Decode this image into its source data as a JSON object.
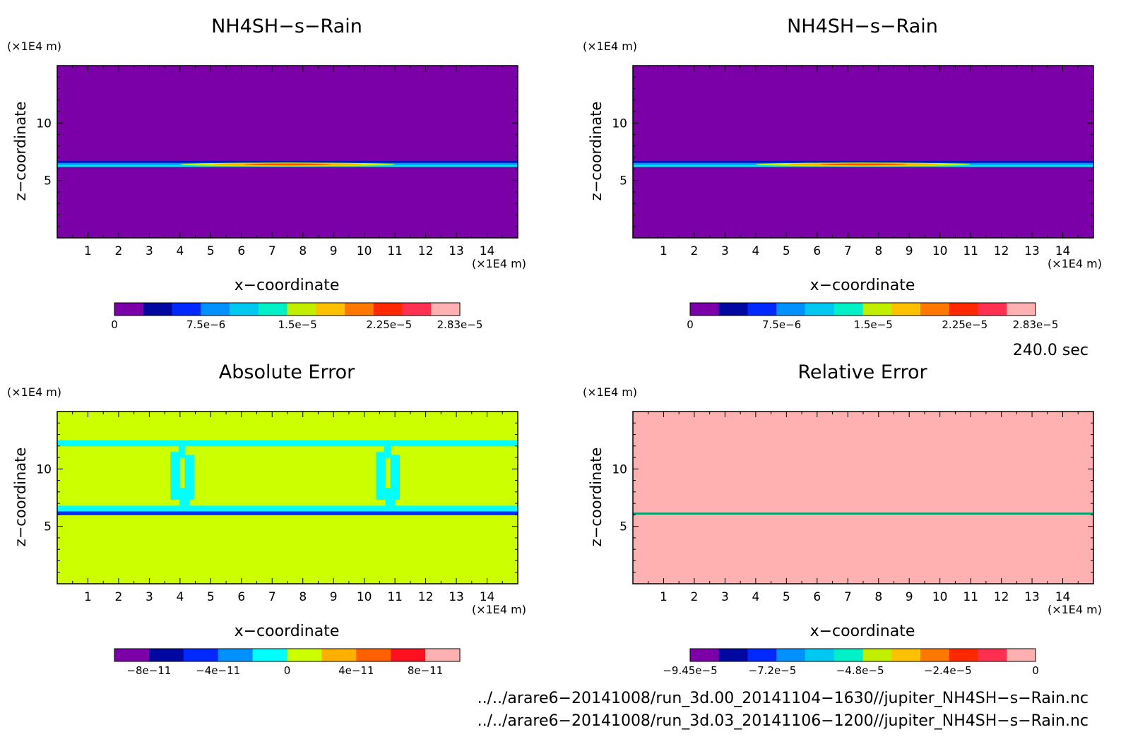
{
  "chart_data": [
    {
      "type": "heatmap",
      "title": "NH4SH−s−Rain",
      "xlabel": "x−coordinate",
      "ylabel": "z−coordinate",
      "x_unit": "(×1E4 m)",
      "y_unit": "(×1E4 m)",
      "xlim": [
        0,
        15
      ],
      "ylim": [
        0,
        15
      ],
      "x_ticks": [
        "1",
        "2",
        "3",
        "4",
        "5",
        "6",
        "7",
        "8",
        "9",
        "10",
        "11",
        "12",
        "13",
        "14"
      ],
      "y_ticks": [
        "5",
        "10"
      ],
      "background_color": "#7b00a8",
      "features": [
        {
          "kind": "band",
          "z_from": 6.2,
          "z_to": 6.7,
          "colors": [
            "#0018b8",
            "#0090ff",
            "#00e8e8"
          ],
          "value": 7.5e-06
        },
        {
          "kind": "bump",
          "x_from": 4,
          "x_to": 11,
          "z": 6.4,
          "colors": [
            "#c8f000",
            "#ffb000",
            "#ff5000"
          ],
          "value_max": 2.83e-05
        }
      ],
      "colorbar": {
        "colors": [
          "#7b00a8",
          "#0008a0",
          "#0028ff",
          "#0090ff",
          "#00c8f0",
          "#00f0c8",
          "#c0f000",
          "#ffc000",
          "#ff7800",
          "#ff2800",
          "#ff3050",
          "#ffb0b0"
        ],
        "labels": [
          "0",
          "7.5e−6",
          "1.5e−5",
          "2.25e−5",
          "2.83e−5"
        ],
        "label_values": [
          0,
          7.5e-06,
          1.5e-05,
          2.25e-05,
          2.83e-05
        ],
        "min": 0,
        "max": 2.83e-05
      }
    },
    {
      "type": "heatmap",
      "title": "NH4SH−s−Rain",
      "xlabel": "x−coordinate",
      "ylabel": "z−coordinate",
      "x_unit": "(×1E4 m)",
      "y_unit": "(×1E4 m)",
      "xlim": [
        0,
        15
      ],
      "ylim": [
        0,
        15
      ],
      "x_ticks": [
        "1",
        "2",
        "3",
        "4",
        "5",
        "6",
        "7",
        "8",
        "9",
        "10",
        "11",
        "12",
        "13",
        "14"
      ],
      "y_ticks": [
        "5",
        "10"
      ],
      "background_color": "#7b00a8",
      "features": [
        {
          "kind": "band",
          "z_from": 6.2,
          "z_to": 6.7,
          "colors": [
            "#0018b8",
            "#0090ff",
            "#00e8e8"
          ],
          "value": 7.5e-06
        },
        {
          "kind": "bump",
          "x_from": 4,
          "x_to": 11,
          "z": 6.4,
          "colors": [
            "#c8f000",
            "#ffb000",
            "#ff5000"
          ],
          "value_max": 2.83e-05
        }
      ],
      "colorbar": {
        "colors": [
          "#7b00a8",
          "#0008a0",
          "#0028ff",
          "#0090ff",
          "#00c8f0",
          "#00f0c8",
          "#c0f000",
          "#ffc000",
          "#ff7800",
          "#ff2800",
          "#ff3050",
          "#ffb0b0"
        ],
        "labels": [
          "0",
          "7.5e−6",
          "1.5e−5",
          "2.25e−5",
          "2.83e−5"
        ],
        "label_values": [
          0,
          7.5e-06,
          1.5e-05,
          2.25e-05,
          2.83e-05
        ],
        "min": 0,
        "max": 2.83e-05
      }
    },
    {
      "type": "heatmap",
      "title": "Absolute Error",
      "xlabel": "x−coordinate",
      "ylabel": "z−coordinate",
      "x_unit": "(×1E4 m)",
      "y_unit": "(×1E4 m)",
      "xlim": [
        0,
        15
      ],
      "ylim": [
        0,
        15
      ],
      "x_ticks": [
        "1",
        "2",
        "3",
        "4",
        "5",
        "6",
        "7",
        "8",
        "9",
        "10",
        "11",
        "12",
        "13",
        "14"
      ],
      "y_ticks": [
        "5",
        "10"
      ],
      "background_color": "#ccff00",
      "features": [
        {
          "kind": "band",
          "z_from": 12.0,
          "z_to": 12.5,
          "colors": [
            "#00ffff"
          ],
          "value": 0
        },
        {
          "kind": "band",
          "z_from": 6.3,
          "z_to": 6.8,
          "colors": [
            "#00ffff"
          ],
          "value": 0
        },
        {
          "kind": "band",
          "z_from": 6.0,
          "z_to": 6.3,
          "colors": [
            "#0028ff"
          ],
          "value": -4e-11
        },
        {
          "kind": "column",
          "x_from": 3.6,
          "x_to": 4.7,
          "z_from": 6.8,
          "z_to": 12.0,
          "colors": [
            "#00ffff"
          ],
          "value": 0
        },
        {
          "kind": "column",
          "x_from": 10.3,
          "x_to": 11.4,
          "z_from": 6.8,
          "z_to": 12.0,
          "colors": [
            "#00ffff"
          ],
          "value": 0
        }
      ],
      "colorbar": {
        "colors": [
          "#7b00a8",
          "#0008a0",
          "#0028ff",
          "#0090ff",
          "#00ffff",
          "#ccff00",
          "#ffb000",
          "#ff6000",
          "#ff1020",
          "#ffb0b0"
        ],
        "labels": [
          "−8e−11",
          "−4e−11",
          "0",
          "4e−11",
          "8e−11"
        ],
        "label_values": [
          -8e-11,
          -4e-11,
          0,
          4e-11,
          8e-11
        ],
        "min": -1e-10,
        "max": 1e-10
      }
    },
    {
      "type": "heatmap",
      "title": "Relative Error",
      "xlabel": "x−coordinate",
      "ylabel": "z−coordinate",
      "x_unit": "(×1E4 m)",
      "y_unit": "(×1E4 m)",
      "xlim": [
        0,
        15
      ],
      "ylim": [
        0,
        15
      ],
      "x_ticks": [
        "1",
        "2",
        "3",
        "4",
        "5",
        "6",
        "7",
        "8",
        "9",
        "10",
        "11",
        "12",
        "13",
        "14"
      ],
      "y_ticks": [
        "5",
        "10"
      ],
      "background_color": "#ffb0b0",
      "features": [
        {
          "kind": "band",
          "z_from": 6.05,
          "z_to": 6.2,
          "colors": [
            "#00a070"
          ],
          "value": 0
        }
      ],
      "colorbar": {
        "colors": [
          "#7b00a8",
          "#0008a0",
          "#0028ff",
          "#0090ff",
          "#00c8f0",
          "#00f0c8",
          "#c0f000",
          "#ffc000",
          "#ff7800",
          "#ff2800",
          "#ff3050",
          "#ffb0b0"
        ],
        "labels": [
          "−9.45e−5",
          "−7.2e−5",
          "−4.8e−5",
          "−2.4e−5",
          "0"
        ],
        "label_values": [
          -9.45e-05,
          -7.2e-05,
          -4.8e-05,
          -2.4e-05,
          0
        ],
        "min": -9.45e-05,
        "max": 0
      }
    }
  ],
  "annotations": {
    "time": "240.0 sec",
    "file1": "../../arare6−20141008/run_3d.00_20141104−1630//jupiter_NH4SH−s−Rain.nc",
    "file2": "../../arare6−20141008/run_3d.03_20141106−1200//jupiter_NH4SH−s−Rain.nc"
  }
}
